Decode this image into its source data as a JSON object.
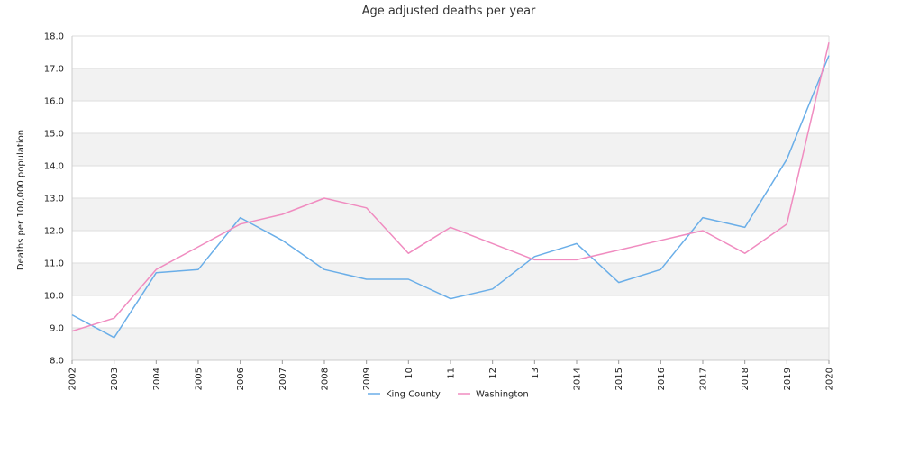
{
  "chart_data": {
    "type": "line",
    "title": "Age adjusted deaths per year",
    "xlabel": "",
    "ylabel": "Deaths per 100,000 population",
    "categories": [
      "2002",
      "2003",
      "2004",
      "2005",
      "2006",
      "2007",
      "2008",
      "2009",
      "2010",
      "2011",
      "2012",
      "2013",
      "2014",
      "2015",
      "2016",
      "2017",
      "2018",
      "2019",
      "2020"
    ],
    "tick_labels": [
      "2002",
      "2003",
      "2004",
      "2005",
      "2006",
      "2007",
      "2008",
      "2009",
      "10",
      "11",
      "12",
      "13",
      "2014",
      "2015",
      "2016",
      "2017",
      "2018",
      "2019",
      "2020"
    ],
    "ylim": [
      8.0,
      18.0
    ],
    "yticks": [
      "8.0",
      "9.0",
      "10.0",
      "11.0",
      "12.0",
      "13.0",
      "14.0",
      "15.0",
      "16.0",
      "17.0",
      "18.0"
    ],
    "grid": "alternating horizontal bands",
    "legend_position": "bottom",
    "series": [
      {
        "name": "King County",
        "color": "#6aaee8",
        "values": [
          9.4,
          8.7,
          10.7,
          10.8,
          12.4,
          11.7,
          10.8,
          10.5,
          10.5,
          9.9,
          10.2,
          11.2,
          11.6,
          10.4,
          10.8,
          12.4,
          12.1,
          14.2,
          17.4
        ]
      },
      {
        "name": "Washington",
        "color": "#f08cc0",
        "values": [
          8.9,
          9.3,
          10.8,
          11.5,
          12.2,
          12.5,
          13.0,
          12.7,
          11.3,
          12.1,
          11.6,
          11.1,
          11.1,
          11.4,
          11.7,
          12.0,
          11.3,
          12.2,
          17.8
        ]
      }
    ]
  }
}
